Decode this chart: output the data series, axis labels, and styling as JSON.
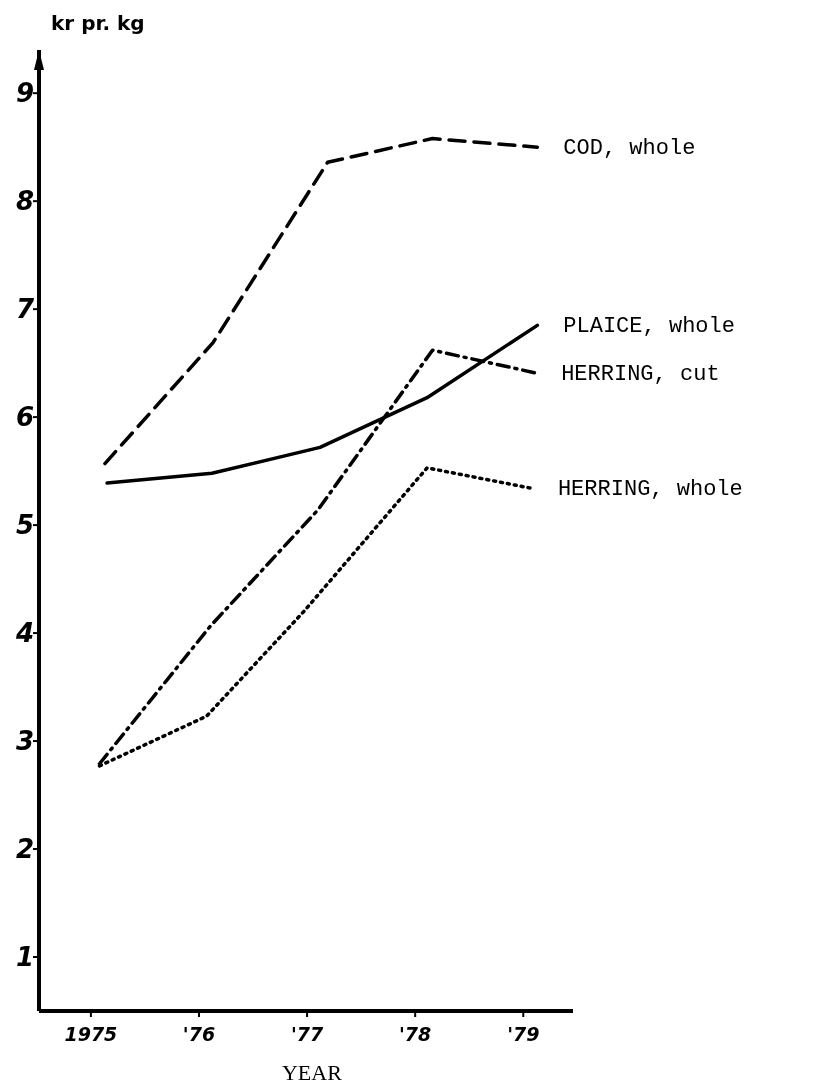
{
  "chart_data": {
    "type": "line",
    "ylabel": "kr pr. kg",
    "xlabel": "YEAR",
    "xlim": [
      1974.52,
      1979.46
    ],
    "xticks": [
      {
        "value": 1975,
        "label": "1975"
      },
      {
        "value": 1976,
        "label": "'76"
      },
      {
        "value": 1977,
        "label": "'77"
      },
      {
        "value": 1978,
        "label": "'78"
      },
      {
        "value": 1979,
        "label": "'79"
      }
    ],
    "ylim": [
      0.5,
      9.4
    ],
    "yticks": [
      1,
      2,
      3,
      4,
      5,
      6,
      7,
      8,
      9
    ],
    "grid": false,
    "legend": false,
    "marker": "none",
    "series": [
      {
        "name": "COD, whole",
        "color": "#000000",
        "line_style": "dashed",
        "x": [
          1975.13,
          1976.13,
          1977.19,
          1978.16,
          1979.13
        ],
        "values": [
          5.57,
          6.69,
          8.36,
          8.58,
          8.5
        ]
      },
      {
        "name": "PLAICE, whole",
        "color": "#000000",
        "line_style": "solid",
        "x": [
          1975.15,
          1976.12,
          1977.12,
          1978.11,
          1979.13
        ],
        "values": [
          5.39,
          5.48,
          5.72,
          6.18,
          6.85
        ]
      },
      {
        "name": "HERRING, cut",
        "color": "#000000",
        "line_style": "dashdot",
        "x": [
          1975.08,
          1976.11,
          1977.1,
          1978.16,
          1979.11
        ],
        "values": [
          2.79,
          4.07,
          5.14,
          6.62,
          6.41
        ]
      },
      {
        "name": "HERRING, whole",
        "color": "#000000",
        "line_style": "dotted",
        "x": [
          1975.08,
          1976.07,
          1976.97,
          1978.11,
          1979.08
        ],
        "values": [
          2.77,
          3.23,
          4.2,
          5.53,
          5.34
        ]
      }
    ]
  }
}
